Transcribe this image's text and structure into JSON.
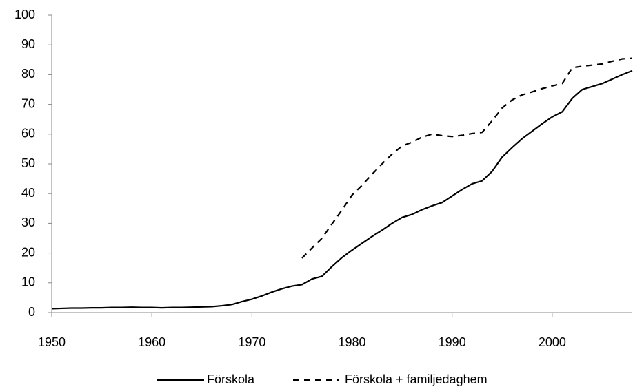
{
  "chart_data": {
    "type": "line",
    "x": [
      1950,
      1951,
      1952,
      1953,
      1954,
      1955,
      1956,
      1957,
      1958,
      1959,
      1960,
      1961,
      1962,
      1963,
      1964,
      1965,
      1966,
      1967,
      1968,
      1969,
      1970,
      1971,
      1972,
      1973,
      1974,
      1975,
      1976,
      1977,
      1978,
      1979,
      1980,
      1981,
      1982,
      1983,
      1984,
      1985,
      1986,
      1987,
      1988,
      1989,
      1990,
      1991,
      1992,
      1993,
      1994,
      1995,
      1996,
      1997,
      1998,
      1999,
      2000,
      2001,
      2002,
      2003,
      2004,
      2005,
      2006,
      2007,
      2008
    ],
    "series": [
      {
        "name": "Förskola",
        "color": "#000000",
        "dash": false,
        "values": [
          1.3,
          1.4,
          1.5,
          1.5,
          1.6,
          1.6,
          1.7,
          1.7,
          1.8,
          1.7,
          1.7,
          1.6,
          1.7,
          1.7,
          1.8,
          1.9,
          2.0,
          2.3,
          2.7,
          3.7,
          4.5,
          5.6,
          6.9,
          8.0,
          8.9,
          9.4,
          11.3,
          12.2,
          15.5,
          18.5,
          21.0,
          23.3,
          25.6,
          27.7,
          30.0,
          32.0,
          33.0,
          34.6,
          35.9,
          37.0,
          39.2,
          41.4,
          43.3,
          44.3,
          47.5,
          52.3,
          55.5,
          58.5,
          61.0,
          63.5,
          65.8,
          67.5,
          72.0,
          75.0,
          76.0,
          77.0,
          78.5,
          80.0,
          81.3
        ]
      },
      {
        "name": "Förskola + familjedaghem",
        "color": "#000000",
        "dash": true,
        "values": [
          null,
          null,
          null,
          null,
          null,
          null,
          null,
          null,
          null,
          null,
          null,
          null,
          null,
          null,
          null,
          null,
          null,
          null,
          null,
          null,
          null,
          null,
          null,
          null,
          null,
          18.3,
          21.7,
          25.0,
          29.8,
          34.5,
          39.5,
          42.8,
          46.5,
          50.0,
          53.3,
          56.0,
          57.3,
          59.0,
          60.0,
          59.5,
          59.2,
          59.6,
          60.2,
          60.6,
          64.5,
          68.8,
          71.5,
          73.2,
          74.2,
          75.3,
          76.2,
          77.0,
          82.3,
          82.8,
          83.2,
          83.6,
          84.5,
          85.3,
          85.5
        ]
      }
    ],
    "xlim": [
      1950,
      2008
    ],
    "xticks": [
      1950,
      1960,
      1970,
      1980,
      1990,
      2000
    ],
    "ylim": [
      0,
      100
    ],
    "yticks": [
      0,
      10,
      20,
      30,
      40,
      50,
      60,
      70,
      80,
      90,
      100
    ],
    "grid": false
  }
}
